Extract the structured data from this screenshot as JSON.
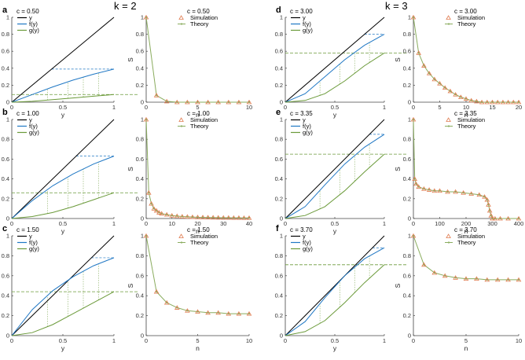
{
  "headings": {
    "left": "k = 2",
    "right": "k = 3"
  },
  "colors": {
    "y": "#000000",
    "f": "#1f77c4",
    "g": "#6b9a3a",
    "sim": "#e07b4f",
    "theory": "#8aac5e",
    "axis": "#444444"
  },
  "legend_left": [
    "y",
    "f(y)",
    "g(y)"
  ],
  "legend_right": [
    "Simulation",
    "Theory"
  ],
  "axis_labels": {
    "left_x": "y",
    "right_x": "n",
    "right_y": "S"
  },
  "chart_data": [
    {
      "panel": "a",
      "k": 2,
      "c_label": "c = 0.50",
      "left": {
        "type": "line",
        "xlim": [
          0,
          1
        ],
        "ylim": [
          0,
          1
        ],
        "xticks": [
          "0",
          "0.5",
          "1"
        ],
        "yticks": [
          "0",
          "0.2",
          "0.4",
          "0.6",
          "0.8",
          "1"
        ],
        "series": [
          {
            "name": "y",
            "x": [
              0,
              1
            ],
            "y": [
              0,
              1
            ]
          },
          {
            "name": "f(y)",
            "x": [
              0,
              0.2,
              0.4,
              0.6,
              0.8,
              1
            ],
            "y": [
              0,
              0.09,
              0.18,
              0.26,
              0.33,
              0.39
            ]
          },
          {
            "name": "g(y)",
            "x": [
              0,
              0.2,
              0.4,
              0.6,
              0.8,
              1
            ],
            "y": [
              0,
              0.01,
              0.03,
              0.05,
              0.07,
              0.09
            ]
          }
        ]
      },
      "right": {
        "type": "line",
        "xlim": [
          0,
          10
        ],
        "ylim": [
          0,
          1
        ],
        "xticks": [
          "0",
          "5",
          "10"
        ],
        "yticks": [
          "0",
          "0.2",
          "0.4",
          "0.6",
          "0.8",
          "1"
        ],
        "n": [
          0,
          1,
          2,
          3,
          4,
          5,
          6,
          7,
          8,
          9,
          10
        ],
        "series": [
          {
            "name": "Simulation",
            "values": [
              1.0,
              0.08,
              0.01,
              0.0,
              0.0,
              0.0,
              0.0,
              0.0,
              0.0,
              0.0,
              0.0
            ]
          },
          {
            "name": "Theory",
            "values": [
              1.0,
              0.08,
              0.01,
              0.0,
              0.0,
              0.0,
              0.0,
              0.0,
              0.0,
              0.0,
              0.0
            ]
          }
        ]
      }
    },
    {
      "panel": "b",
      "k": 2,
      "c_label": "c = 1.00",
      "left": {
        "type": "line",
        "xlim": [
          0,
          1
        ],
        "ylim": [
          0,
          1
        ],
        "xticks": [
          "0",
          "0.5",
          "1"
        ],
        "yticks": [
          "0",
          "0.2",
          "0.4",
          "0.6",
          "0.8",
          "1"
        ],
        "series": [
          {
            "name": "y",
            "x": [
              0,
              1
            ],
            "y": [
              0,
              1
            ]
          },
          {
            "name": "f(y)",
            "x": [
              0,
              0.2,
              0.4,
              0.6,
              0.8,
              1
            ],
            "y": [
              0,
              0.18,
              0.33,
              0.45,
              0.55,
              0.63
            ]
          },
          {
            "name": "g(y)",
            "x": [
              0,
              0.2,
              0.4,
              0.6,
              0.8,
              1
            ],
            "y": [
              0,
              0.02,
              0.06,
              0.12,
              0.19,
              0.26
            ]
          }
        ]
      },
      "right": {
        "type": "line",
        "xlim": [
          0,
          40
        ],
        "ylim": [
          0,
          1
        ],
        "xticks": [
          "0",
          "10",
          "20",
          "30",
          "40"
        ],
        "yticks": [
          "0",
          "0.2",
          "0.4",
          "0.6",
          "0.8",
          "1"
        ],
        "n": [
          0,
          1,
          2,
          3,
          4,
          5,
          6,
          8,
          10,
          12,
          14,
          16,
          18,
          20,
          22,
          24,
          26,
          28,
          30,
          32,
          34,
          36,
          38,
          40
        ],
        "series": [
          {
            "name": "Simulation",
            "values": [
              1.0,
              0.26,
              0.15,
              0.1,
              0.08,
              0.06,
              0.05,
              0.04,
              0.03,
              0.025,
              0.02,
              0.018,
              0.015,
              0.013,
              0.012,
              0.011,
              0.01,
              0.009,
              0.008,
              0.008,
              0.007,
              0.007,
              0.006,
              0.006
            ]
          },
          {
            "name": "Theory",
            "values": [
              1.0,
              0.26,
              0.15,
              0.1,
              0.08,
              0.06,
              0.05,
              0.04,
              0.03,
              0.025,
              0.02,
              0.018,
              0.015,
              0.013,
              0.012,
              0.011,
              0.01,
              0.009,
              0.008,
              0.008,
              0.007,
              0.007,
              0.006,
              0.006
            ]
          }
        ]
      }
    },
    {
      "panel": "c",
      "k": 2,
      "c_label": "c = 1.50",
      "left": {
        "type": "line",
        "xlim": [
          0,
          1
        ],
        "ylim": [
          0,
          1
        ],
        "xticks": [
          "0",
          "0.5",
          "1"
        ],
        "yticks": [
          "0",
          "0.2",
          "0.4",
          "0.6",
          "0.8",
          "1"
        ],
        "series": [
          {
            "name": "y",
            "x": [
              0,
              1
            ],
            "y": [
              0,
              1
            ]
          },
          {
            "name": "f(y)",
            "x": [
              0,
              0.2,
              0.4,
              0.6,
              0.8,
              1
            ],
            "y": [
              0,
              0.26,
              0.45,
              0.59,
              0.7,
              0.78
            ]
          },
          {
            "name": "g(y)",
            "x": [
              0,
              0.2,
              0.4,
              0.6,
              0.8,
              1
            ],
            "y": [
              0,
              0.03,
              0.11,
              0.22,
              0.33,
              0.44
            ]
          }
        ]
      },
      "right": {
        "type": "line",
        "xlim": [
          0,
          10
        ],
        "ylim": [
          0,
          1
        ],
        "xticks": [
          "0",
          "5",
          "10"
        ],
        "yticks": [
          "0",
          "0.2",
          "0.4",
          "0.6",
          "0.8",
          "1"
        ],
        "n": [
          0,
          1,
          2,
          3,
          4,
          5,
          6,
          7,
          8,
          9,
          10
        ],
        "series": [
          {
            "name": "Simulation",
            "values": [
              1.0,
              0.44,
              0.33,
              0.28,
              0.25,
              0.24,
              0.23,
              0.23,
              0.22,
              0.22,
              0.22
            ]
          },
          {
            "name": "Theory",
            "values": [
              1.0,
              0.44,
              0.33,
              0.28,
              0.25,
              0.24,
              0.23,
              0.23,
              0.22,
              0.22,
              0.22
            ]
          }
        ]
      }
    },
    {
      "panel": "d",
      "k": 3,
      "c_label": "c = 3.00",
      "left": {
        "type": "line",
        "xlim": [
          0,
          1
        ],
        "ylim": [
          0,
          1
        ],
        "xticks": [
          "0",
          "0.5",
          "1"
        ],
        "yticks": [
          "0",
          "0.2",
          "0.4",
          "0.6",
          "0.8",
          "1"
        ],
        "series": [
          {
            "name": "y",
            "x": [
              0,
              1
            ],
            "y": [
              0,
              1
            ]
          },
          {
            "name": "f(y)",
            "x": [
              0,
              0.2,
              0.4,
              0.6,
              0.8,
              1
            ],
            "y": [
              0,
              0.1,
              0.3,
              0.5,
              0.67,
              0.8
            ]
          },
          {
            "name": "g(y)",
            "x": [
              0,
              0.2,
              0.4,
              0.6,
              0.8,
              1
            ],
            "y": [
              0,
              0.02,
              0.1,
              0.25,
              0.43,
              0.58
            ]
          }
        ]
      },
      "right": {
        "type": "line",
        "xlim": [
          0,
          20
        ],
        "ylim": [
          0,
          1
        ],
        "xticks": [
          "0",
          "5",
          "10",
          "15",
          "20"
        ],
        "yticks": [
          "0",
          "0.2",
          "0.4",
          "0.6",
          "0.8",
          "1"
        ],
        "n": [
          0,
          1,
          2,
          3,
          4,
          5,
          6,
          7,
          8,
          9,
          10,
          11,
          12,
          13,
          14,
          15,
          16,
          17,
          18,
          19,
          20
        ],
        "series": [
          {
            "name": "Simulation",
            "values": [
              1.0,
              0.58,
              0.43,
              0.34,
              0.27,
              0.22,
              0.17,
              0.13,
              0.09,
              0.06,
              0.04,
              0.02,
              0.01,
              0.0,
              0.0,
              0.0,
              0.0,
              0.0,
              0.0,
              0.0,
              0.0
            ]
          },
          {
            "name": "Theory",
            "values": [
              1.0,
              0.58,
              0.43,
              0.34,
              0.27,
              0.22,
              0.17,
              0.13,
              0.09,
              0.06,
              0.04,
              0.02,
              0.01,
              0.0,
              0.0,
              0.0,
              0.0,
              0.0,
              0.0,
              0.0,
              0.0
            ]
          }
        ]
      }
    },
    {
      "panel": "e",
      "k": 3,
      "c_label": "c = 3.35",
      "left": {
        "type": "line",
        "xlim": [
          0,
          1
        ],
        "ylim": [
          0,
          1
        ],
        "xticks": [
          "0",
          "0.5",
          "1"
        ],
        "yticks": [
          "0",
          "0.2",
          "0.4",
          "0.6",
          "0.8",
          "1"
        ],
        "series": [
          {
            "name": "y",
            "x": [
              0,
              1
            ],
            "y": [
              0,
              1
            ]
          },
          {
            "name": "f(y)",
            "x": [
              0,
              0.2,
              0.4,
              0.6,
              0.8,
              1
            ],
            "y": [
              0,
              0.12,
              0.34,
              0.55,
              0.72,
              0.85
            ]
          },
          {
            "name": "g(y)",
            "x": [
              0,
              0.2,
              0.4,
              0.6,
              0.8,
              1
            ],
            "y": [
              0,
              0.03,
              0.12,
              0.28,
              0.47,
              0.65
            ]
          }
        ]
      },
      "right": {
        "type": "line",
        "xlim": [
          0,
          400
        ],
        "ylim": [
          0,
          1
        ],
        "xticks": [
          "0",
          "100",
          "200",
          "300",
          "400"
        ],
        "yticks": [
          "0",
          "0.2",
          "0.4",
          "0.6",
          "0.8",
          "1"
        ],
        "n": [
          0,
          5,
          10,
          20,
          40,
          60,
          80,
          100,
          130,
          160,
          190,
          220,
          250,
          270,
          280,
          285,
          290,
          295,
          300,
          310,
          330,
          360,
          400
        ],
        "series": [
          {
            "name": "Simulation",
            "values": [
              1.0,
              0.4,
              0.35,
              0.32,
              0.3,
              0.29,
              0.28,
              0.28,
              0.27,
              0.27,
              0.26,
              0.25,
              0.24,
              0.22,
              0.19,
              0.14,
              0.08,
              0.03,
              0.0,
              0.0,
              0.0,
              0.0,
              0.0
            ]
          },
          {
            "name": "Theory",
            "values": [
              1.0,
              0.4,
              0.35,
              0.32,
              0.3,
              0.29,
              0.28,
              0.28,
              0.27,
              0.27,
              0.26,
              0.25,
              0.24,
              0.22,
              0.19,
              0.14,
              0.08,
              0.03,
              0.0,
              0.0,
              0.0,
              0.0,
              0.0
            ]
          }
        ]
      }
    },
    {
      "panel": "f",
      "k": 3,
      "c_label": "c = 3.70",
      "left": {
        "type": "line",
        "xlim": [
          0,
          1
        ],
        "ylim": [
          0,
          1
        ],
        "xticks": [
          "0",
          "0.5",
          "1"
        ],
        "yticks": [
          "0",
          "0.2",
          "0.4",
          "0.6",
          "0.8",
          "1"
        ],
        "series": [
          {
            "name": "y",
            "x": [
              0,
              1
            ],
            "y": [
              0,
              1
            ]
          },
          {
            "name": "f(y)",
            "x": [
              0,
              0.2,
              0.4,
              0.6,
              0.8,
              1
            ],
            "y": [
              0,
              0.14,
              0.38,
              0.6,
              0.77,
              0.88
            ]
          },
          {
            "name": "g(y)",
            "x": [
              0,
              0.2,
              0.4,
              0.6,
              0.8,
              1
            ],
            "y": [
              0,
              0.04,
              0.15,
              0.33,
              0.53,
              0.71
            ]
          }
        ]
      },
      "right": {
        "type": "line",
        "xlim": [
          0,
          10
        ],
        "ylim": [
          0,
          1
        ],
        "xticks": [
          "0",
          "5",
          "10"
        ],
        "yticks": [
          "0",
          "0.2",
          "0.4",
          "0.6",
          "0.8",
          "1"
        ],
        "n": [
          0,
          1,
          2,
          3,
          4,
          5,
          6,
          7,
          8,
          9,
          10
        ],
        "series": [
          {
            "name": "Simulation",
            "values": [
              1.0,
              0.71,
              0.63,
              0.6,
              0.58,
              0.57,
              0.57,
              0.56,
              0.56,
              0.56,
              0.56
            ]
          },
          {
            "name": "Theory",
            "values": [
              1.0,
              0.71,
              0.63,
              0.6,
              0.58,
              0.57,
              0.57,
              0.56,
              0.56,
              0.56,
              0.56
            ]
          }
        ]
      }
    }
  ]
}
